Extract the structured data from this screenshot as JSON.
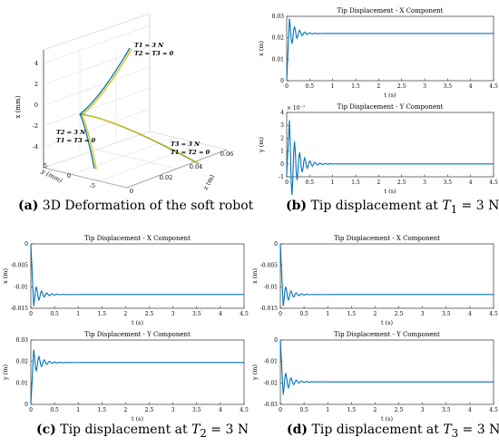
{
  "captions": {
    "a": {
      "label": "(a)",
      "text": "3D Deformation of the soft robot"
    },
    "b": {
      "label": "(b)",
      "pre": "Tip displacement at ",
      "sym": "T",
      "sub": "1",
      "post": " = 3 N"
    },
    "c": {
      "label": "(c)",
      "pre": "Tip displacement at ",
      "sym": "T",
      "sub": "2",
      "post": " = 3 N"
    },
    "d": {
      "label": "(d)",
      "pre": "Tip displacement at ",
      "sym": "T",
      "sub": "3",
      "post": " = 3 N"
    }
  },
  "chart_data": [
    {
      "id": "a",
      "type": "line",
      "projection": "3d",
      "title": "",
      "xlabel": "z (m)",
      "ylabel": "y (mm)",
      "zlabel": "x (mm)",
      "x_ticks": [
        "0",
        "0.02",
        "0.04",
        "0.06"
      ],
      "y_ticks": [
        "5",
        "0",
        "-5"
      ],
      "z_ticks": [
        "4",
        "2",
        "0",
        "-2",
        "-4"
      ],
      "annotations": [
        {
          "line1": "T1 = 3 N",
          "line2": "T2 = T3 = 0"
        },
        {
          "line1": "T2 = 3 N",
          "line2": "T1 = T3 = 0"
        },
        {
          "line1": "T3 = 3 N",
          "line2": "T1 = T2 = 0"
        }
      ],
      "series": [
        {
          "curve": "T1",
          "color": "#0072bd"
        },
        {
          "curve": "T1",
          "color": "#d8c000"
        },
        {
          "curve": "T2",
          "color": "#0072bd"
        },
        {
          "curve": "T2",
          "color": "#d8c000"
        },
        {
          "curve": "T3",
          "color": "#0072bd"
        },
        {
          "curve": "T3",
          "color": "#d8c000"
        }
      ],
      "grid": true
    },
    {
      "id": "b1",
      "type": "line",
      "title": "Tip Displacement - X Component",
      "xlabel": "t (s)",
      "ylabel": "x (m)",
      "xlim": [
        0,
        4.5
      ],
      "ylim": [
        0,
        0.03
      ],
      "x_ticks": [
        "0",
        "0.5",
        "1",
        "1.5",
        "2",
        "2.5",
        "3",
        "3.5",
        "4",
        "4.5"
      ],
      "y_ticks": [
        "0",
        "0.01",
        "0.02",
        "0.03"
      ],
      "exponent": "",
      "series_color": "#0072bd",
      "response": {
        "initial": 0.0,
        "final": 0.022,
        "peak": 0.029,
        "osc_amp": 0.003,
        "decay": 7,
        "freq": 9
      },
      "grid": false
    },
    {
      "id": "b2",
      "type": "line",
      "title": "Tip Displacement - Y Component",
      "xlabel": "t (s)",
      "ylabel": "y (m)",
      "xlim": [
        0,
        4.5
      ],
      "ylim": [
        -1,
        4
      ],
      "x_ticks": [
        "0",
        "0.5",
        "1",
        "1.5",
        "2",
        "2.5",
        "3",
        "3.5",
        "4",
        "4.5"
      ],
      "y_ticks": [
        "-1",
        "0",
        "1",
        "2",
        "3",
        "4"
      ],
      "exponent": "× 10⁻⁷",
      "series_color": "#0072bd",
      "response": {
        "initial": -0.8,
        "final": 0.0,
        "peak": 3.4,
        "osc_amp": 1.1,
        "decay": 6,
        "freq": 9
      },
      "grid": false
    },
    {
      "id": "c1",
      "type": "line",
      "title": "Tip Displacement - X Component",
      "xlabel": "t (s)",
      "ylabel": "x (m)",
      "xlim": [
        0,
        4.5
      ],
      "ylim": [
        -0.015,
        0
      ],
      "x_ticks": [
        "0",
        "0.5",
        "1",
        "1.5",
        "2",
        "2.5",
        "3",
        "3.5",
        "4",
        "4.5"
      ],
      "y_ticks": [
        "0",
        "-0.005",
        "-0.01",
        "-0.015"
      ],
      "exponent": "",
      "series_color": "#0072bd",
      "response": {
        "initial": 0.0,
        "final": -0.0118,
        "peak": -0.0145,
        "osc_amp": 0.0015,
        "decay": 7,
        "freq": 9
      },
      "grid": false
    },
    {
      "id": "c2",
      "type": "line",
      "title": "Tip Displacement - Y Component",
      "xlabel": "t (s)",
      "ylabel": "y (m)",
      "xlim": [
        0,
        4.5
      ],
      "ylim": [
        0,
        0.03
      ],
      "x_ticks": [
        "0",
        "0.5",
        "1",
        "1.5",
        "2",
        "2.5",
        "3",
        "3.5",
        "4",
        "4.5"
      ],
      "y_ticks": [
        "0",
        "0.01",
        "0.02",
        "0.03"
      ],
      "exponent": "",
      "series_color": "#0072bd",
      "response": {
        "initial": 0.0,
        "final": 0.0195,
        "peak": 0.0255,
        "osc_amp": 0.003,
        "decay": 7,
        "freq": 9
      },
      "grid": false
    },
    {
      "id": "d1",
      "type": "line",
      "title": "Tip Displacement - X Component",
      "xlabel": "t (s)",
      "ylabel": "x (m)",
      "xlim": [
        0,
        4.5
      ],
      "ylim": [
        -0.015,
        0
      ],
      "x_ticks": [
        "0",
        "0.5",
        "1",
        "1.5",
        "2",
        "2.5",
        "3",
        "3.5",
        "4",
        "4.5"
      ],
      "y_ticks": [
        "0",
        "-0.005",
        "-0.01",
        "-0.015"
      ],
      "exponent": "",
      "series_color": "#0072bd",
      "response": {
        "initial": 0.0,
        "final": -0.0118,
        "peak": -0.0145,
        "osc_amp": 0.0015,
        "decay": 7,
        "freq": 9
      },
      "grid": false
    },
    {
      "id": "d2",
      "type": "line",
      "title": "Tip Displacement - Y Component",
      "xlabel": "t (s)",
      "ylabel": "y (m)",
      "xlim": [
        0,
        4.5
      ],
      "ylim": [
        -0.03,
        0
      ],
      "x_ticks": [
        "0",
        "0.5",
        "1",
        "1.5",
        "2",
        "2.5",
        "3",
        "3.5",
        "4",
        "4.5"
      ],
      "y_ticks": [
        "0",
        "-0.01",
        "-0.02",
        "-0.03"
      ],
      "exponent": "",
      "series_color": "#0072bd",
      "response": {
        "initial": 0.0,
        "final": -0.0195,
        "peak": -0.0255,
        "osc_amp": 0.003,
        "decay": 7,
        "freq": 9
      },
      "grid": false
    }
  ]
}
